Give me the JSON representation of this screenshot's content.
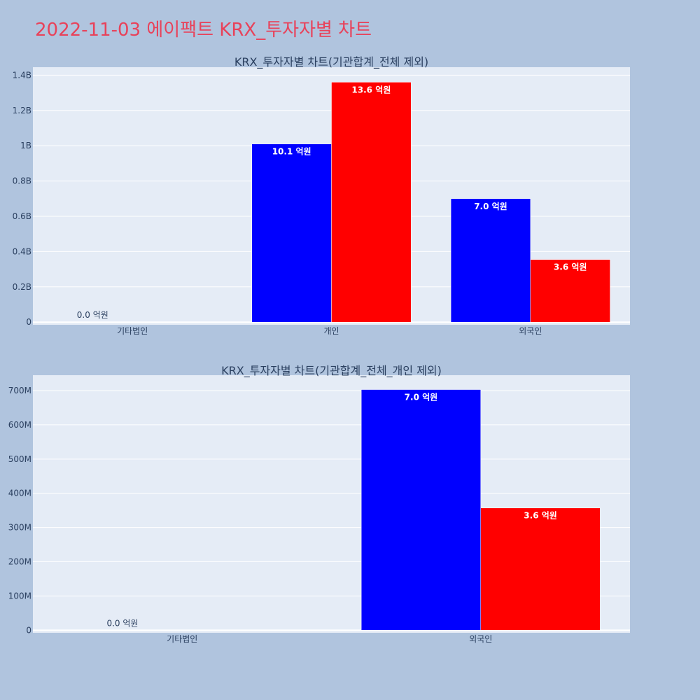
{
  "page": {
    "title": "2022-11-03 에이팩트 KRX_투자자별 차트",
    "background": "#b0c4de",
    "title_color": "#e8425a",
    "plot_background": "#e5ecf6"
  },
  "chart_data": [
    {
      "type": "bar",
      "title": "KRX_투자자별 차트(기관합계_전체 제외)",
      "categories": [
        "기타법인",
        "개인",
        "외국인"
      ],
      "series": [
        {
          "color": "#0000ff",
          "values": [
            0,
            1010000000,
            700000000
          ],
          "labels": [
            "0.0 억원",
            "10.1 억원",
            "7.0 억원"
          ]
        },
        {
          "color": "#ff0000",
          "values": [
            0,
            1360000000,
            355000000
          ],
          "labels": [
            "",
            "13.6 억원",
            "3.6 억원"
          ]
        }
      ],
      "yticks": [
        {
          "value": 0,
          "label": "0"
        },
        {
          "value": 200000000,
          "label": "0.2B"
        },
        {
          "value": 400000000,
          "label": "0.4B"
        },
        {
          "value": 600000000,
          "label": "0.6B"
        },
        {
          "value": 800000000,
          "label": "0.8B"
        },
        {
          "value": 1000000000,
          "label": "1B"
        },
        {
          "value": 1200000000,
          "label": "1.2B"
        },
        {
          "value": 1400000000,
          "label": "1.4B"
        }
      ],
      "ylim": [
        -15000000,
        1445000000
      ],
      "xlabel": "",
      "ylabel": "",
      "grid": true,
      "legend": "none"
    },
    {
      "type": "bar",
      "title": "KRX_투자자별 차트(기관합계_전체_개인 제외)",
      "categories": [
        "기타법인",
        "외국인"
      ],
      "series": [
        {
          "color": "#0000ff",
          "values": [
            0,
            703000000
          ],
          "labels": [
            "0.0 억원",
            "7.0 억원"
          ]
        },
        {
          "color": "#ff0000",
          "values": [
            0,
            357000000
          ],
          "labels": [
            "",
            "3.6 억원"
          ]
        }
      ],
      "yticks": [
        {
          "value": 0,
          "label": "0"
        },
        {
          "value": 100000000,
          "label": "100M"
        },
        {
          "value": 200000000,
          "label": "200M"
        },
        {
          "value": 300000000,
          "label": "300M"
        },
        {
          "value": 400000000,
          "label": "400M"
        },
        {
          "value": 500000000,
          "label": "500M"
        },
        {
          "value": 600000000,
          "label": "600M"
        },
        {
          "value": 700000000,
          "label": "700M"
        }
      ],
      "ylim": [
        -7500000,
        745000000
      ],
      "xlabel": "",
      "ylabel": "",
      "grid": true,
      "legend": "none"
    }
  ]
}
